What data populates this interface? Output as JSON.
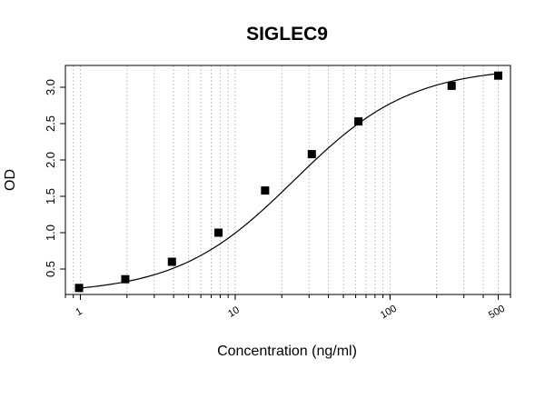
{
  "chart_data": {
    "type": "scatter",
    "title": "SIGLEC9",
    "xlabel": "Concentration (ng/ml)",
    "ylabel": "OD",
    "xscale": "log",
    "xlim": [
      0.8,
      600
    ],
    "ylim": [
      0.15,
      3.3
    ],
    "x_ticks": [
      1,
      10,
      100,
      500
    ],
    "x_tick_labels": [
      "1",
      "10",
      "100",
      "500"
    ],
    "y_ticks": [
      0.5,
      1.0,
      1.5,
      2.0,
      2.5,
      3.0
    ],
    "y_tick_labels": [
      "0.5",
      "1.0",
      "1.5",
      "2.0",
      "2.5",
      "3.0"
    ],
    "grid": "vertical dotted at log minor ticks",
    "legend": "none",
    "series": [
      {
        "marker": "square",
        "color": "#000000",
        "x": [
          0.98,
          1.95,
          3.9,
          7.8,
          15.6,
          31.25,
          62.5,
          250,
          500
        ],
        "y": [
          0.24,
          0.36,
          0.6,
          1.0,
          1.58,
          2.08,
          2.53,
          3.02,
          3.16
        ]
      }
    ],
    "fit_curve": {
      "model": "4PL",
      "bottom": 0.16,
      "top": 3.28,
      "ec50": 24,
      "hill": 1.15,
      "color": "#000000"
    }
  }
}
